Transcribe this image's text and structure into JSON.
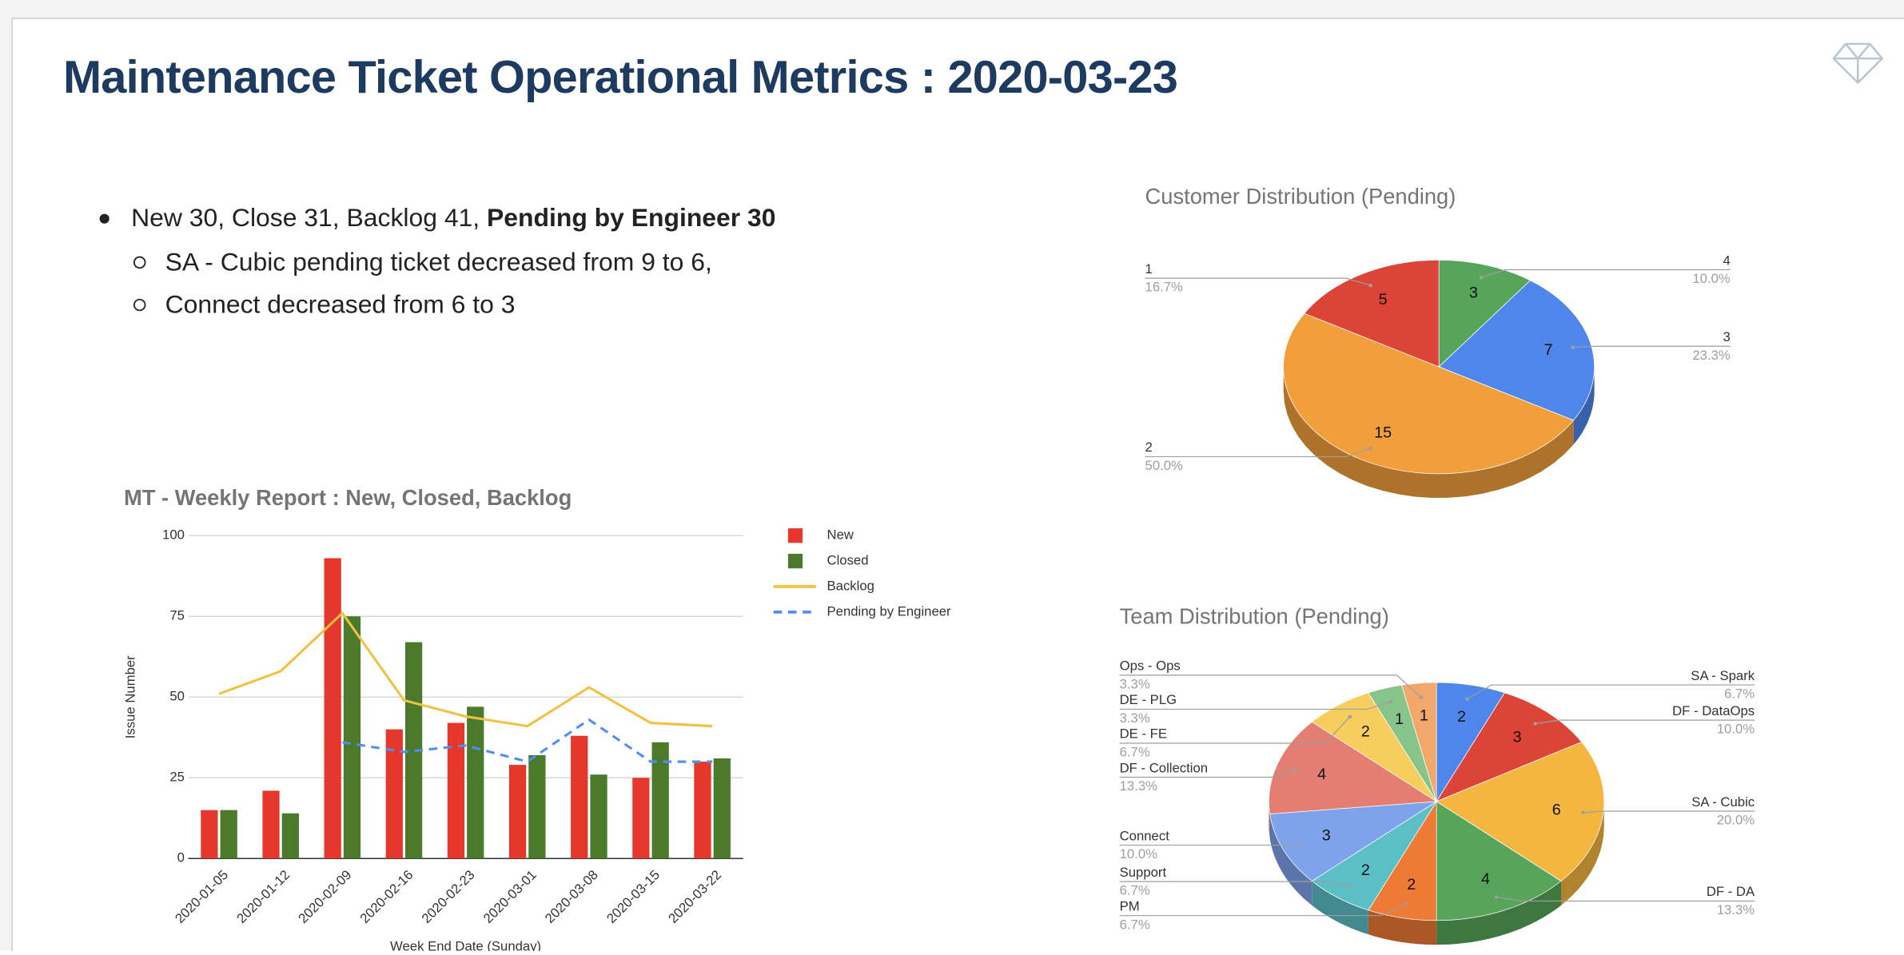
{
  "title": "Maintenance Ticket Operational Metrics : 2020-03-23",
  "bullets": [
    {
      "text": "New 30, Close 31, Backlog 41, ",
      "bold": "Pending by Engineer 30",
      "children": [
        "SA - Cubic pending ticket decreased from 9 to 6,",
        "Connect decreased from 6 to 3"
      ]
    }
  ],
  "chart_data": [
    {
      "type": "bar",
      "title": "MT - Weekly Report : New, Closed, Backlog",
      "x_label": "Week End Date (Sunday)",
      "y_label": "Issue Number",
      "categories": [
        "2020-01-05",
        "2020-01-12",
        "2020-02-09",
        "2020-02-16",
        "2020-02-23",
        "2020-03-01",
        "2020-03-08",
        "2020-03-15",
        "2020-03-22"
      ],
      "series": [
        {
          "name": "New",
          "type": "bar",
          "color": "#e5372b",
          "values": [
            15,
            21,
            93,
            40,
            42,
            29,
            38,
            25,
            30
          ]
        },
        {
          "name": "Closed",
          "type": "bar",
          "color": "#4b7a2b",
          "values": [
            15,
            14,
            75,
            67,
            47,
            32,
            26,
            36,
            31
          ]
        },
        {
          "name": "Backlog",
          "type": "line",
          "color": "#f3c142",
          "dashed": false,
          "values": [
            51,
            58,
            76,
            49,
            44,
            41,
            53,
            42,
            41
          ]
        },
        {
          "name": "Pending by Engineer",
          "type": "line",
          "color": "#4f8ef7",
          "dashed": true,
          "values": [
            null,
            null,
            36,
            33,
            35,
            30,
            43,
            30,
            30
          ]
        }
      ],
      "ylim": [
        0,
        100
      ],
      "yticks": [
        0,
        25,
        50,
        75,
        100
      ],
      "grid": true,
      "legend": "right"
    },
    {
      "type": "pie",
      "three_d": true,
      "title": "Customer Distribution (Pending)",
      "categories": [
        "4",
        "3",
        "2",
        "1"
      ],
      "values": [
        3,
        7,
        15,
        5
      ],
      "percent_labels": [
        "10.0%",
        "23.3%",
        "50.0%",
        "16.7%"
      ],
      "colors": [
        "#57a55a",
        "#4f86ec",
        "#f19e3b",
        "#db4437"
      ]
    },
    {
      "type": "pie",
      "three_d": true,
      "title": "Team Distribution (Pending)",
      "categories": [
        "SA - Spark",
        "DF - DataOps",
        "SA - Cubic",
        "DF - DA",
        "PM",
        "Support",
        "Connect",
        "DF - Collection",
        "DE - FE",
        "DE - PLG",
        "Ops - Ops"
      ],
      "values": [
        2,
        3,
        6,
        4,
        2,
        2,
        3,
        4,
        2,
        1,
        1
      ],
      "percent_labels": [
        "6.7%",
        "10.0%",
        "20.0%",
        "13.3%",
        "6.7%",
        "6.7%",
        "10.0%",
        "13.3%",
        "6.7%",
        "3.3%",
        "3.3%"
      ],
      "colors": [
        "#4f86ec",
        "#db4437",
        "#f4b63f",
        "#57a55a",
        "#ee7a35",
        "#5bbfc6",
        "#7ea3ec",
        "#e47d72",
        "#f7cd5e",
        "#86c48a",
        "#f3a86b"
      ]
    }
  ]
}
